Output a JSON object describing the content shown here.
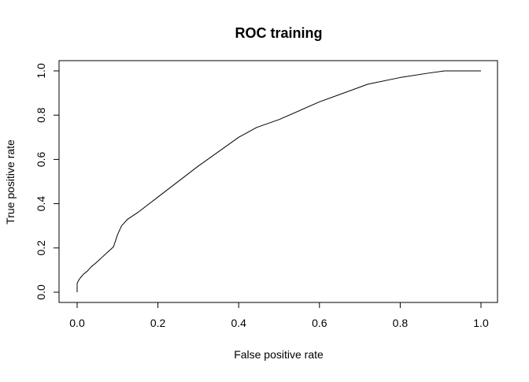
{
  "chart_data": {
    "type": "line",
    "title": "ROC training",
    "xlabel": "False positive rate",
    "ylabel": "True positive rate",
    "xlim": [
      0,
      1
    ],
    "ylim": [
      0,
      1
    ],
    "xticks": [
      0.0,
      0.2,
      0.4,
      0.6,
      0.8,
      1.0
    ],
    "xtick_labels": [
      "0.0",
      "0.2",
      "0.4",
      "0.6",
      "0.8",
      "1.0"
    ],
    "yticks": [
      0.0,
      0.2,
      0.4,
      0.6,
      0.8,
      1.0
    ],
    "ytick_labels": [
      "0.0",
      "0.2",
      "0.4",
      "0.6",
      "0.8",
      "1.0"
    ],
    "grid": false,
    "legend": "none",
    "line_color": "#000000",
    "series": [
      {
        "x": [
          0.0,
          0.0,
          0.004,
          0.008,
          0.015,
          0.025,
          0.035,
          0.045,
          0.06,
          0.075,
          0.09,
          0.1,
          0.11,
          0.125,
          0.15,
          0.2,
          0.3,
          0.4,
          0.445,
          0.5,
          0.6,
          0.72,
          0.8,
          0.87,
          0.91,
          1.0
        ],
        "y": [
          0.0,
          0.04,
          0.055,
          0.065,
          0.08,
          0.095,
          0.115,
          0.13,
          0.155,
          0.18,
          0.205,
          0.26,
          0.3,
          0.33,
          0.36,
          0.43,
          0.57,
          0.7,
          0.745,
          0.78,
          0.86,
          0.94,
          0.97,
          0.99,
          1.0,
          1.0
        ]
      }
    ]
  }
}
